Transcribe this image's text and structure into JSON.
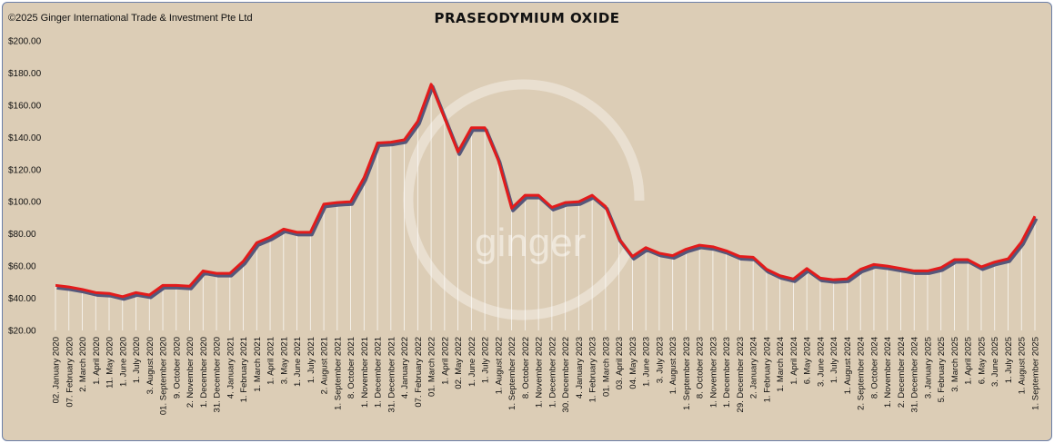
{
  "copyright": "©2025 Ginger International Trade & Investment Pte Ltd",
  "watermark": "ginger",
  "colors": {
    "background": "#dccdb6",
    "line": "#e31b1b",
    "shadow": "#55577a",
    "drop": "#ffffff"
  },
  "chart_data": {
    "type": "line",
    "title": "PRASEODYMIUM OXIDE",
    "xlabel": "",
    "ylabel": "",
    "ylim": [
      20,
      200
    ],
    "yticks": [
      "$20.00",
      "$40.00",
      "$60.00",
      "$80.00",
      "$100.00",
      "$120.00",
      "$140.00",
      "$160.00",
      "$180.00",
      "$200.00"
    ],
    "grid": false,
    "categories": [
      "02. January 2020",
      "07. February 2020",
      "2. March 2020",
      "1. April 2020",
      "11. May 2020",
      "1. June 2020",
      "1. July 2020",
      "3. August 2020",
      "01. September 2020",
      "9. October 2020",
      "2. November 2020",
      "1. December 2020",
      "31. December 2020",
      "4. January 2021",
      "1. February 2021",
      "1. March 2021",
      "1. April 2021",
      "3. May 2021",
      "1. June 2021",
      "1. July 2021",
      "2. August 2021",
      "1. September 2021",
      "8. October 2021",
      "1. November 2021",
      "1. December 2021",
      "31. December 2021",
      "4. January 2022",
      "07. February 2022",
      "01. March 2022",
      "1. April 2022",
      "02. May 2022",
      "1. June 2022",
      "1. July 2022",
      "1. August 2022",
      "1. September 2022",
      "8. October 2022",
      "1. November 2022",
      "1. December 2022",
      "30. December 2022",
      "4. January 2023",
      "1. February 2023",
      "01. March 2023",
      "03. April 2023",
      "04. May 2023",
      "1. June 2023",
      "3. July 2023",
      "1. August 2023",
      "1. September 2023",
      "8. October 2023",
      "1. November 2023",
      "1. December 2023",
      "29. December 2023",
      "2. January 2024",
      "1. February 2024",
      "1. March 2024",
      "1. April 2024",
      "6. May 2024",
      "3. June 2024",
      "1. July 2024",
      "1. August 2024",
      "2. September 2024",
      "8. October 2024",
      "1. November 2024",
      "2. December 2024",
      "31. December 2024",
      "3. January 2025",
      "5. February 2025",
      "3. March 2025",
      "1. April 2025",
      "6. May 2025",
      "3. June 2025",
      "1. July 2025",
      "1. August 2025",
      "1. September 2025"
    ],
    "series": [
      {
        "values": [
          48,
          47,
          45.5,
          43.5,
          43,
          41,
          43.5,
          42,
          48,
          48,
          47.5,
          57,
          55.5,
          55.5,
          63,
          74.5,
          78,
          83,
          81,
          81,
          98.5,
          99.5,
          100,
          115,
          136.5,
          137,
          138.5,
          150,
          173,
          152,
          131,
          146,
          146,
          126,
          96,
          104,
          104,
          96.5,
          99.5,
          100,
          104,
          97,
          77,
          66,
          71.5,
          68,
          66.5,
          70.5,
          73,
          72,
          69.5,
          66,
          65.5,
          58,
          54,
          52,
          58.5,
          52.5,
          51.5,
          52,
          58,
          61,
          60,
          58.5,
          57,
          57,
          59,
          64,
          64,
          59.5,
          62.5,
          64.5,
          75,
          91
        ]
      }
    ]
  }
}
